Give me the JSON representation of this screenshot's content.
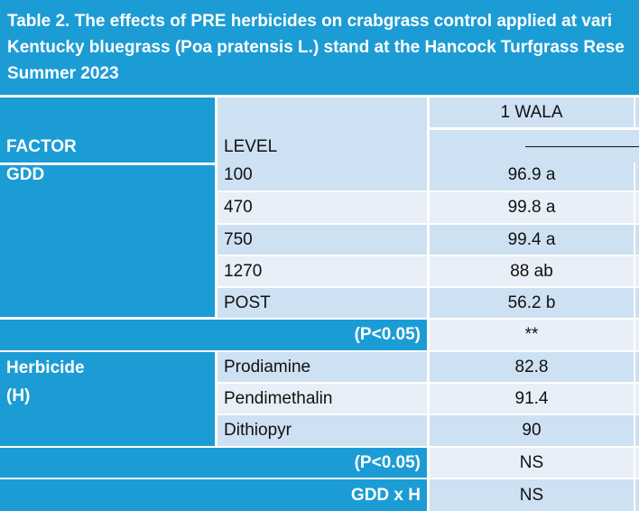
{
  "caption": {
    "line1": "Table 2. The effects of PRE herbicides on crabgrass control applied at vari",
    "line2": "Kentucky bluegrass (Poa pratensis  L.) stand at the Hancock Turfgrass Rese",
    "line3": "Summer 2023"
  },
  "header": {
    "factor": "FACTOR",
    "level": "LEVEL",
    "timing": "1 WALA"
  },
  "gdd_group": {
    "factor": "GDD",
    "rows": [
      {
        "level": "100",
        "value": "96.9 a"
      },
      {
        "level": "470",
        "value": "99.8 a"
      },
      {
        "level": "750",
        "value": "99.4 a"
      },
      {
        "level": "1270",
        "value": "88 ab"
      },
      {
        "level": "POST",
        "value": "56.2 b"
      }
    ],
    "significance_label": "(P<0.05)",
    "significance_value": "**"
  },
  "herbicide_group": {
    "factor_line1": "Herbicide",
    "factor_line2": "(H)",
    "rows": [
      {
        "level": "Prodiamine",
        "value": "82.8"
      },
      {
        "level": "Pendimethalin",
        "value": "91.4"
      },
      {
        "level": "Dithiopyr",
        "value": "90"
      }
    ],
    "significance_label": "(P<0.05)",
    "significance_value": "NS"
  },
  "interaction": {
    "label": "GDD x H",
    "value": "NS"
  },
  "colors": {
    "header_blue": "#1c9cd5",
    "row_light": "#cde1f2",
    "row_lighter": "#e8eff8"
  }
}
